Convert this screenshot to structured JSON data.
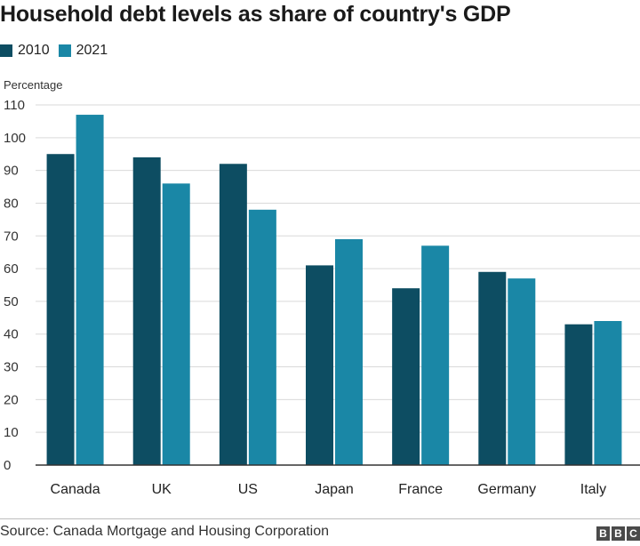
{
  "title": "Household debt levels as share of country's GDP",
  "source": "Source: Canada Mortgage and Housing Corporation",
  "logo": [
    "B",
    "B",
    "C"
  ],
  "colors": {
    "s2010": "#0d4d62",
    "s2021": "#1a87a6",
    "grid": "#d9d9d9",
    "axis": "#333333"
  },
  "chart_data": {
    "type": "bar",
    "title": "Household debt levels as share of country's GDP",
    "ylabel": "Percentage",
    "xlabel": "",
    "ylim": [
      0,
      110
    ],
    "yticks": [
      0,
      10,
      20,
      30,
      40,
      50,
      60,
      70,
      80,
      90,
      100,
      110
    ],
    "grid": true,
    "legend_position": "top-left",
    "categories": [
      "Canada",
      "UK",
      "US",
      "Japan",
      "France",
      "Germany",
      "Italy"
    ],
    "series": [
      {
        "name": "2010",
        "values": [
          95,
          94,
          92,
          61,
          54,
          59,
          43
        ]
      },
      {
        "name": "2021",
        "values": [
          107,
          86,
          78,
          69,
          67,
          57,
          44
        ]
      }
    ]
  }
}
